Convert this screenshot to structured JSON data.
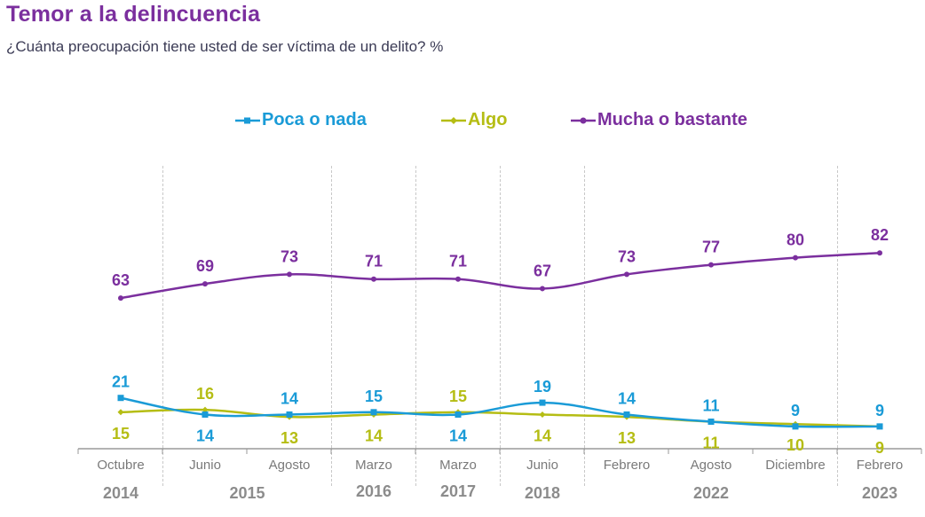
{
  "header": {
    "title": "Temor a la delincuencia",
    "subtitle": "¿Cuánta preocupación tiene usted de ser víctima de un delito? %"
  },
  "colors": {
    "poca": "#1a9bd7",
    "algo": "#b5bd14",
    "mucha": "#7b2f9e",
    "axis": "#9a9a9a",
    "grid": "#c8c8c8"
  },
  "chart_data": {
    "type": "line",
    "title": "Temor a la delincuencia",
    "subtitle": "¿Cuánta preocupación tiene usted de ser víctima de un delito? %",
    "xlabel": "",
    "ylabel": "%",
    "ylim": [
      0,
      100
    ],
    "grid": false,
    "legend_position": "top-center",
    "categories": [
      "Octubre",
      "Junio",
      "Agosto",
      "Marzo",
      "Marzo",
      "Junio",
      "Febrero",
      "Agosto",
      "Diciembre",
      "Febrero"
    ],
    "year_groups": [
      {
        "label": "2014",
        "span": [
          0,
          0
        ]
      },
      {
        "label": "2015",
        "span": [
          1,
          2
        ]
      },
      {
        "label": "2016",
        "span": [
          3,
          3
        ]
      },
      {
        "label": "2017",
        "span": [
          4,
          4
        ]
      },
      {
        "label": "2018",
        "span": [
          5,
          5
        ]
      },
      {
        "label": "2022",
        "span": [
          6,
          8
        ]
      },
      {
        "label": "2023",
        "span": [
          9,
          9
        ]
      }
    ],
    "series": [
      {
        "name": "Poca o nada",
        "key": "poca",
        "marker": "square",
        "values": [
          21,
          14,
          14,
          15,
          14,
          19,
          14,
          11,
          9,
          9
        ],
        "label_pos": [
          "above",
          "below",
          "above",
          "above",
          "below",
          "above",
          "above",
          "above",
          "above",
          "above"
        ]
      },
      {
        "name": "Algo",
        "key": "algo",
        "marker": "diamond",
        "values": [
          15,
          16,
          13,
          14,
          15,
          14,
          13,
          11,
          10,
          9
        ],
        "label_pos": [
          "below",
          "above",
          "below",
          "below",
          "above",
          "below",
          "below",
          "below",
          "below",
          "below"
        ]
      },
      {
        "name": "Mucha o bastante",
        "key": "mucha",
        "marker": "circle",
        "values": [
          63,
          69,
          73,
          71,
          71,
          67,
          73,
          77,
          80,
          82
        ],
        "label_pos": [
          "above",
          "above",
          "above",
          "above",
          "above",
          "above",
          "above",
          "above",
          "above",
          "above"
        ]
      }
    ]
  }
}
